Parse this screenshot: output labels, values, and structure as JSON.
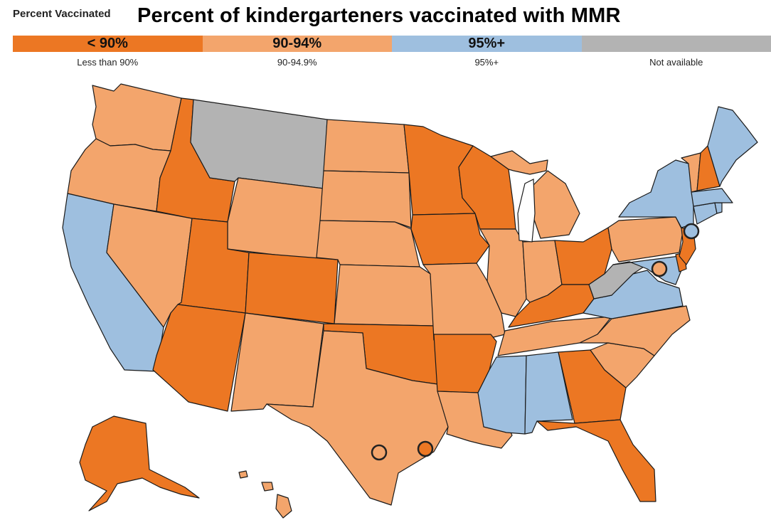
{
  "legend_heading": "Percent Vaccinated",
  "title": "Percent of kindergarteners vaccinated with MMR",
  "colors": {
    "lt90": "#ec7723",
    "90to94": "#f3a56c",
    "95plus": "#9ebfdf",
    "na": "#b3b3b3"
  },
  "legend": [
    {
      "key": "lt90",
      "label": "< 90%",
      "sublabel": "Less than 90%"
    },
    {
      "key": "90to94",
      "label": "90-94%",
      "sublabel": "90-94.9%"
    },
    {
      "key": "95plus",
      "label": "95%+",
      "sublabel": "95%+"
    },
    {
      "key": "na",
      "label": "",
      "sublabel": "Not available"
    }
  ],
  "states": {
    "WA": "90to94",
    "OR": "90to94",
    "CA": "95plus",
    "NV": "90to94",
    "ID": "lt90",
    "MT": "na",
    "WY": "90to94",
    "UT": "lt90",
    "AZ": "lt90",
    "CO": "lt90",
    "NM": "90to94",
    "ND": "90to94",
    "SD": "90to94",
    "NE": "90to94",
    "KS": "90to94",
    "OK": "lt90",
    "TX": "90to94",
    "MN": "lt90",
    "IA": "lt90",
    "MO": "90to94",
    "AR": "lt90",
    "LA": "90to94",
    "WI": "lt90",
    "IL": "90to94",
    "MI": "90to94",
    "IN": "90to94",
    "OH": "lt90",
    "KY": "lt90",
    "TN": "90to94",
    "MS": "95plus",
    "AL": "95plus",
    "GA": "lt90",
    "FL": "lt90",
    "SC": "90to94",
    "NC": "90to94",
    "VA": "95plus",
    "WV": "na",
    "MD": "95plus",
    "DE": "lt90",
    "PA": "90to94",
    "NJ": "lt90",
    "NY": "95plus",
    "CT": "95plus",
    "RI": "95plus",
    "MA": "95plus",
    "VT": "90to94",
    "NH": "lt90",
    "ME": "95plus",
    "AK": "lt90",
    "HI": "90to94"
  },
  "markers": [
    {
      "city": "New York",
      "category": "95plus"
    },
    {
      "city": "Washington DC",
      "category": "90to94"
    },
    {
      "city": "Houston",
      "category": "lt90"
    },
    {
      "city": "San Antonio",
      "category": "na_hollow"
    }
  ]
}
